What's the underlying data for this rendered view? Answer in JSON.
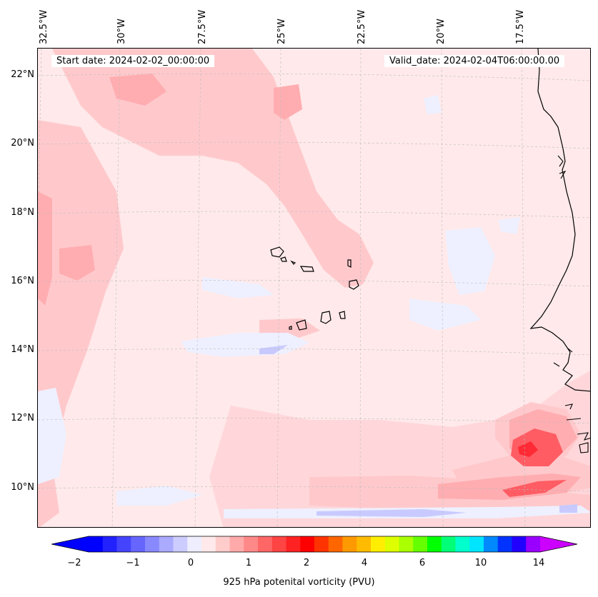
{
  "map": {
    "start_date": "Start date: 2024-02-02_00:00:00",
    "valid_date": "Valid_date: 2024-02-04T06:00:00.00",
    "lon_labels": [
      "32.5°W",
      "30°W",
      "27.5°W",
      "25°W",
      "22.5°W",
      "20°W",
      "17.5°W"
    ],
    "lat_labels": [
      "22°N",
      "20°N",
      "18°N",
      "16°N",
      "14°N",
      "12°N",
      "10°N"
    ],
    "variable": "925 hPa potential vorticity",
    "colors": {
      "background": "#ffe9ea",
      "light_pink": "#ffc9cc",
      "pink": "#ffadb0",
      "red": "#ff5c63",
      "dark_red": "#ff2a35",
      "light_blue": "#eef0ff",
      "blue": "#c8caff",
      "coast": "#000000"
    }
  },
  "colorbar": {
    "label": "925 hPa potenital vorticity (PVU)",
    "ticks": [
      "−2",
      "−1",
      "0",
      "1",
      "2",
      "4",
      "6",
      "10",
      "14"
    ],
    "levels": [
      -2,
      -1.5,
      -1,
      -0.5,
      0,
      0.5,
      1,
      1.5,
      2,
      3,
      4,
      5,
      6,
      8,
      10,
      12,
      14,
      16
    ],
    "colors": [
      "#0000ff",
      "#2222ff",
      "#4444ff",
      "#6666ff",
      "#8888ff",
      "#aaaaff",
      "#ccccff",
      "#eeeeff",
      "#ffe9ea",
      "#ffcccc",
      "#ffaaaa",
      "#ff8888",
      "#ff6666",
      "#ff4444",
      "#ff2222",
      "#ff0000",
      "#ff3300",
      "#ff6600",
      "#ff9900",
      "#ffbb00",
      "#ffee00",
      "#ddff00",
      "#aaff00",
      "#66ff00",
      "#00ff00",
      "#00ff77",
      "#00ffcc",
      "#00e5ff",
      "#0088ff",
      "#0033ff",
      "#2200ff",
      "#9900ff"
    ],
    "extend_low_color": "#0000ff",
    "extend_high_color": "#cc00ff"
  }
}
